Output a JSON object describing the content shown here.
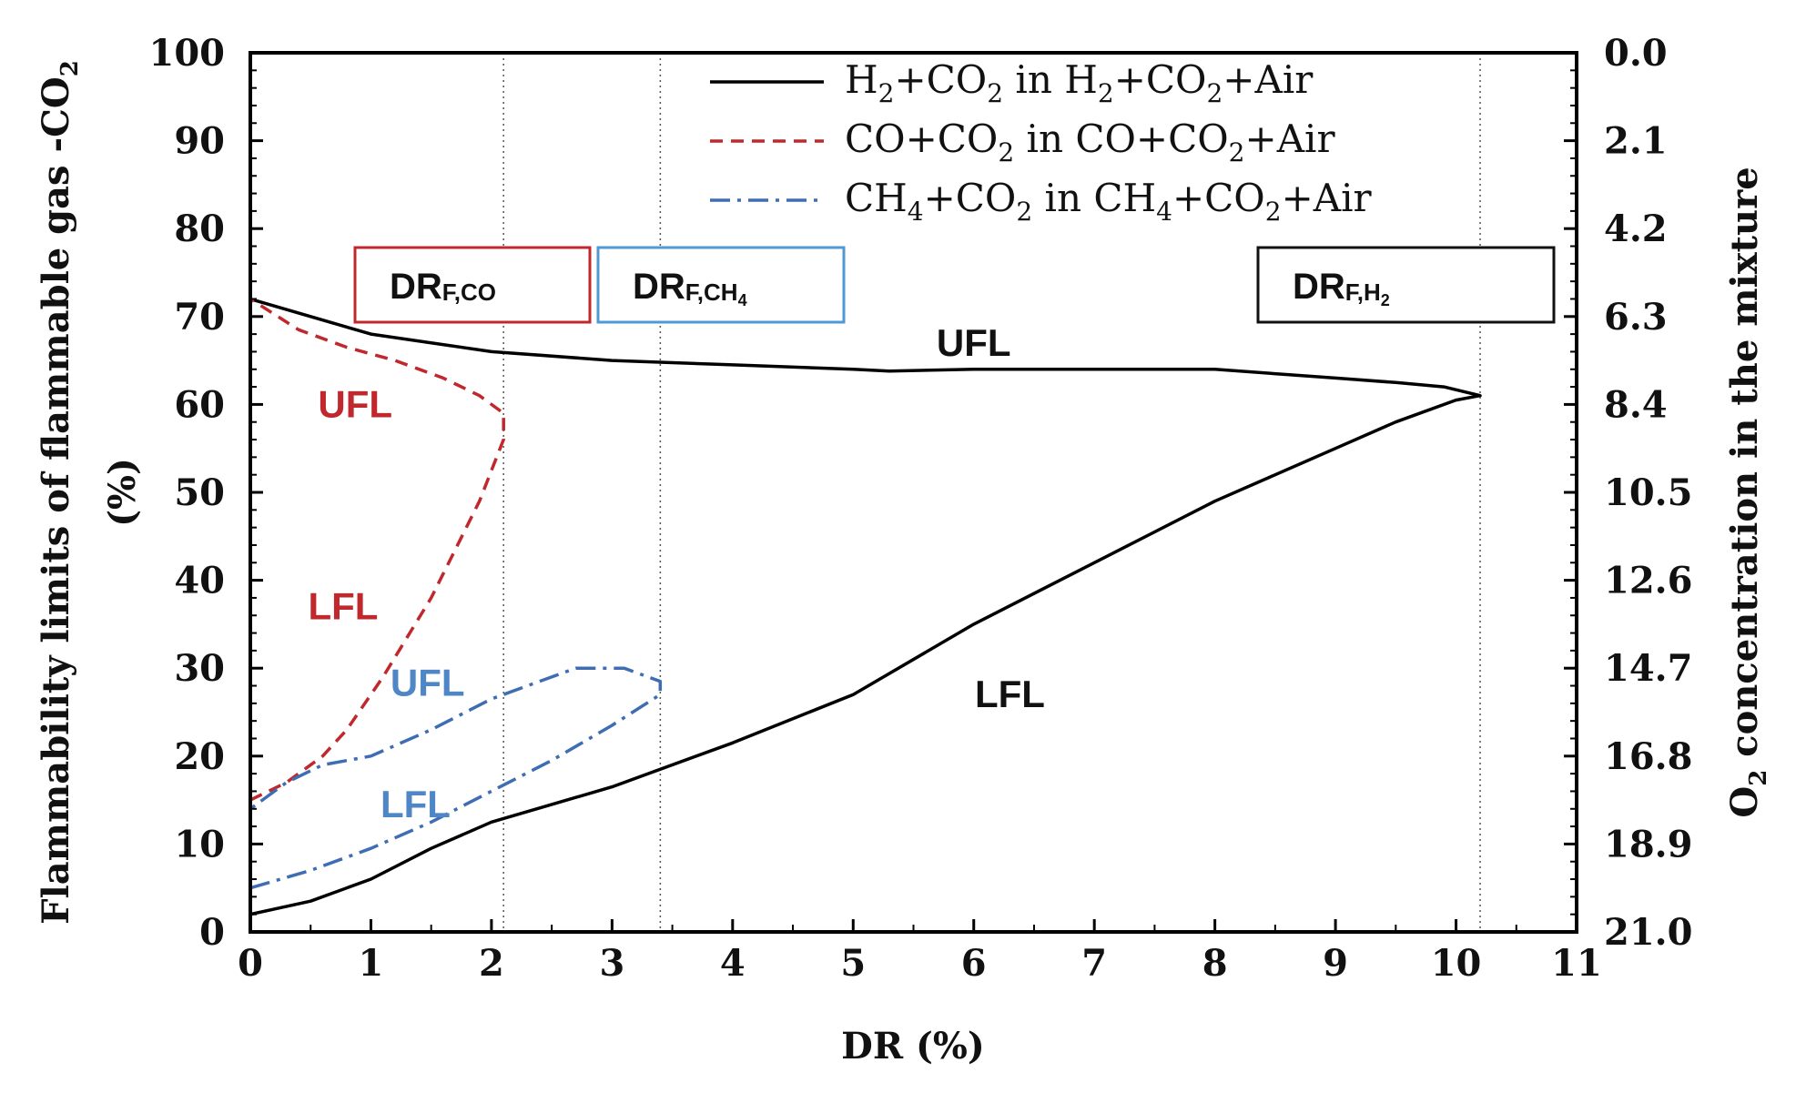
{
  "chart_data": {
    "type": "line",
    "xlabel": "DR (%)",
    "ylabel_line1": "Flammability limits of flammable gas -CO",
    "ylabel_sub": "2",
    "ylabel_line2": "(%)",
    "y2label_main": "O",
    "y2label_sub": "2",
    "y2label_rest": " concentration in the mixture",
    "xlim": [
      0,
      11
    ],
    "ylim": [
      0,
      100
    ],
    "xticks": [
      "0",
      "1",
      "2",
      "3",
      "4",
      "5",
      "6",
      "7",
      "8",
      "9",
      "10",
      "11"
    ],
    "yticks": [
      "0",
      "10",
      "20",
      "30",
      "40",
      "50",
      "60",
      "70",
      "80",
      "90",
      "100"
    ],
    "y2ticks": [
      "21.0",
      "18.9",
      "16.8",
      "14.7",
      "12.6",
      "10.5",
      "8.4",
      "6.3",
      "4.2",
      "2.1",
      "0.0"
    ],
    "vlines": [
      2.1,
      3.4,
      10.2
    ],
    "legend": [
      {
        "parts": [
          [
            "H",
            "2",
            "+CO",
            "2",
            " in H",
            "2",
            "+CO",
            "2",
            "+Air"
          ]
        ],
        "color": "#000000",
        "dash": "solid"
      },
      {
        "parts": [
          [
            "CO+CO",
            "2",
            " in CO+CO",
            "2",
            "+Air"
          ]
        ],
        "color": "#c0282d",
        "dash": "dash"
      },
      {
        "parts": [
          [
            "CH",
            "4",
            "+CO",
            "2",
            " in CH",
            "4",
            "+CO",
            "2",
            "+Air"
          ]
        ],
        "color": "#3f6db3",
        "dash": "dashdot"
      }
    ],
    "series": [
      {
        "name": "H2+CO2 in H2+CO2+Air",
        "color": "#000000",
        "dash": "solid",
        "points": [
          [
            0,
            2
          ],
          [
            0.5,
            3.5
          ],
          [
            1,
            6
          ],
          [
            1.5,
            9.5
          ],
          [
            2,
            12.5
          ],
          [
            3,
            16.5
          ],
          [
            4,
            21.5
          ],
          [
            5,
            27
          ],
          [
            6,
            35
          ],
          [
            7,
            42
          ],
          [
            8,
            49
          ],
          [
            9,
            55
          ],
          [
            9.5,
            58
          ],
          [
            10,
            60.5
          ],
          [
            10.2,
            61
          ],
          [
            9.9,
            62
          ],
          [
            9.5,
            62.5
          ],
          [
            9,
            63
          ],
          [
            8,
            64
          ],
          [
            7,
            64
          ],
          [
            6,
            64
          ],
          [
            5.3,
            63.8
          ],
          [
            5,
            64
          ],
          [
            4,
            64.5
          ],
          [
            3,
            65
          ],
          [
            2,
            66
          ],
          [
            1,
            68
          ],
          [
            0.5,
            70
          ],
          [
            0,
            72
          ]
        ]
      },
      {
        "name": "CO+CO2 in CO+CO2+Air",
        "color": "#c0282d",
        "dash": "dash",
        "points": [
          [
            0,
            15
          ],
          [
            0.3,
            17
          ],
          [
            0.6,
            20
          ],
          [
            0.8,
            23
          ],
          [
            1.1,
            29
          ],
          [
            1.5,
            38
          ],
          [
            1.9,
            49
          ],
          [
            2.1,
            56
          ],
          [
            2.1,
            59
          ],
          [
            1.9,
            61
          ],
          [
            1.6,
            63
          ],
          [
            1.2,
            65
          ],
          [
            0.8,
            66.5
          ],
          [
            0.4,
            68.5
          ],
          [
            0,
            72
          ]
        ]
      },
      {
        "name": "CH4+CO2 in CH4+CO2+Air",
        "color": "#3f6db3",
        "dash": "dashdot",
        "points": [
          [
            0,
            5
          ],
          [
            0.5,
            7
          ],
          [
            1,
            9.5
          ],
          [
            1.5,
            12.5
          ],
          [
            2,
            16
          ],
          [
            2.5,
            19.5
          ],
          [
            3,
            23.5
          ],
          [
            3.4,
            27
          ],
          [
            3.4,
            28.5
          ],
          [
            3.1,
            30
          ],
          [
            2.7,
            30
          ],
          [
            2.3,
            28
          ],
          [
            2,
            26.5
          ],
          [
            1.5,
            23
          ],
          [
            1,
            20
          ],
          [
            0.6,
            19
          ],
          [
            0.3,
            17
          ],
          [
            0,
            14
          ]
        ]
      }
    ],
    "annotations": [
      {
        "text": "UFL",
        "x": 6.0,
        "y": 67,
        "color": "#111111"
      },
      {
        "text": "LFL",
        "x": 6.3,
        "y": 27,
        "color": "#111111"
      },
      {
        "text": "UFL",
        "x": 0.87,
        "y": 60,
        "color": "#c0282d"
      },
      {
        "text": "LFL",
        "x": 0.77,
        "y": 37,
        "color": "#c0282d"
      },
      {
        "text": "UFL",
        "x": 1.47,
        "y": 28.3,
        "color": "#4f86c6"
      },
      {
        "text": "LFL",
        "x": 1.37,
        "y": 14.5,
        "color": "#4f86c6"
      }
    ],
    "boxes": [
      {
        "main": "DR",
        "sub": "F,CO",
        "color": "#c0282d"
      },
      {
        "main": "DR",
        "sub": "F,CH",
        "sub2": "4",
        "color": "#4f9ad6"
      },
      {
        "main": "DR",
        "sub": "F,H",
        "sub2": "2",
        "color": "#111111"
      }
    ]
  }
}
